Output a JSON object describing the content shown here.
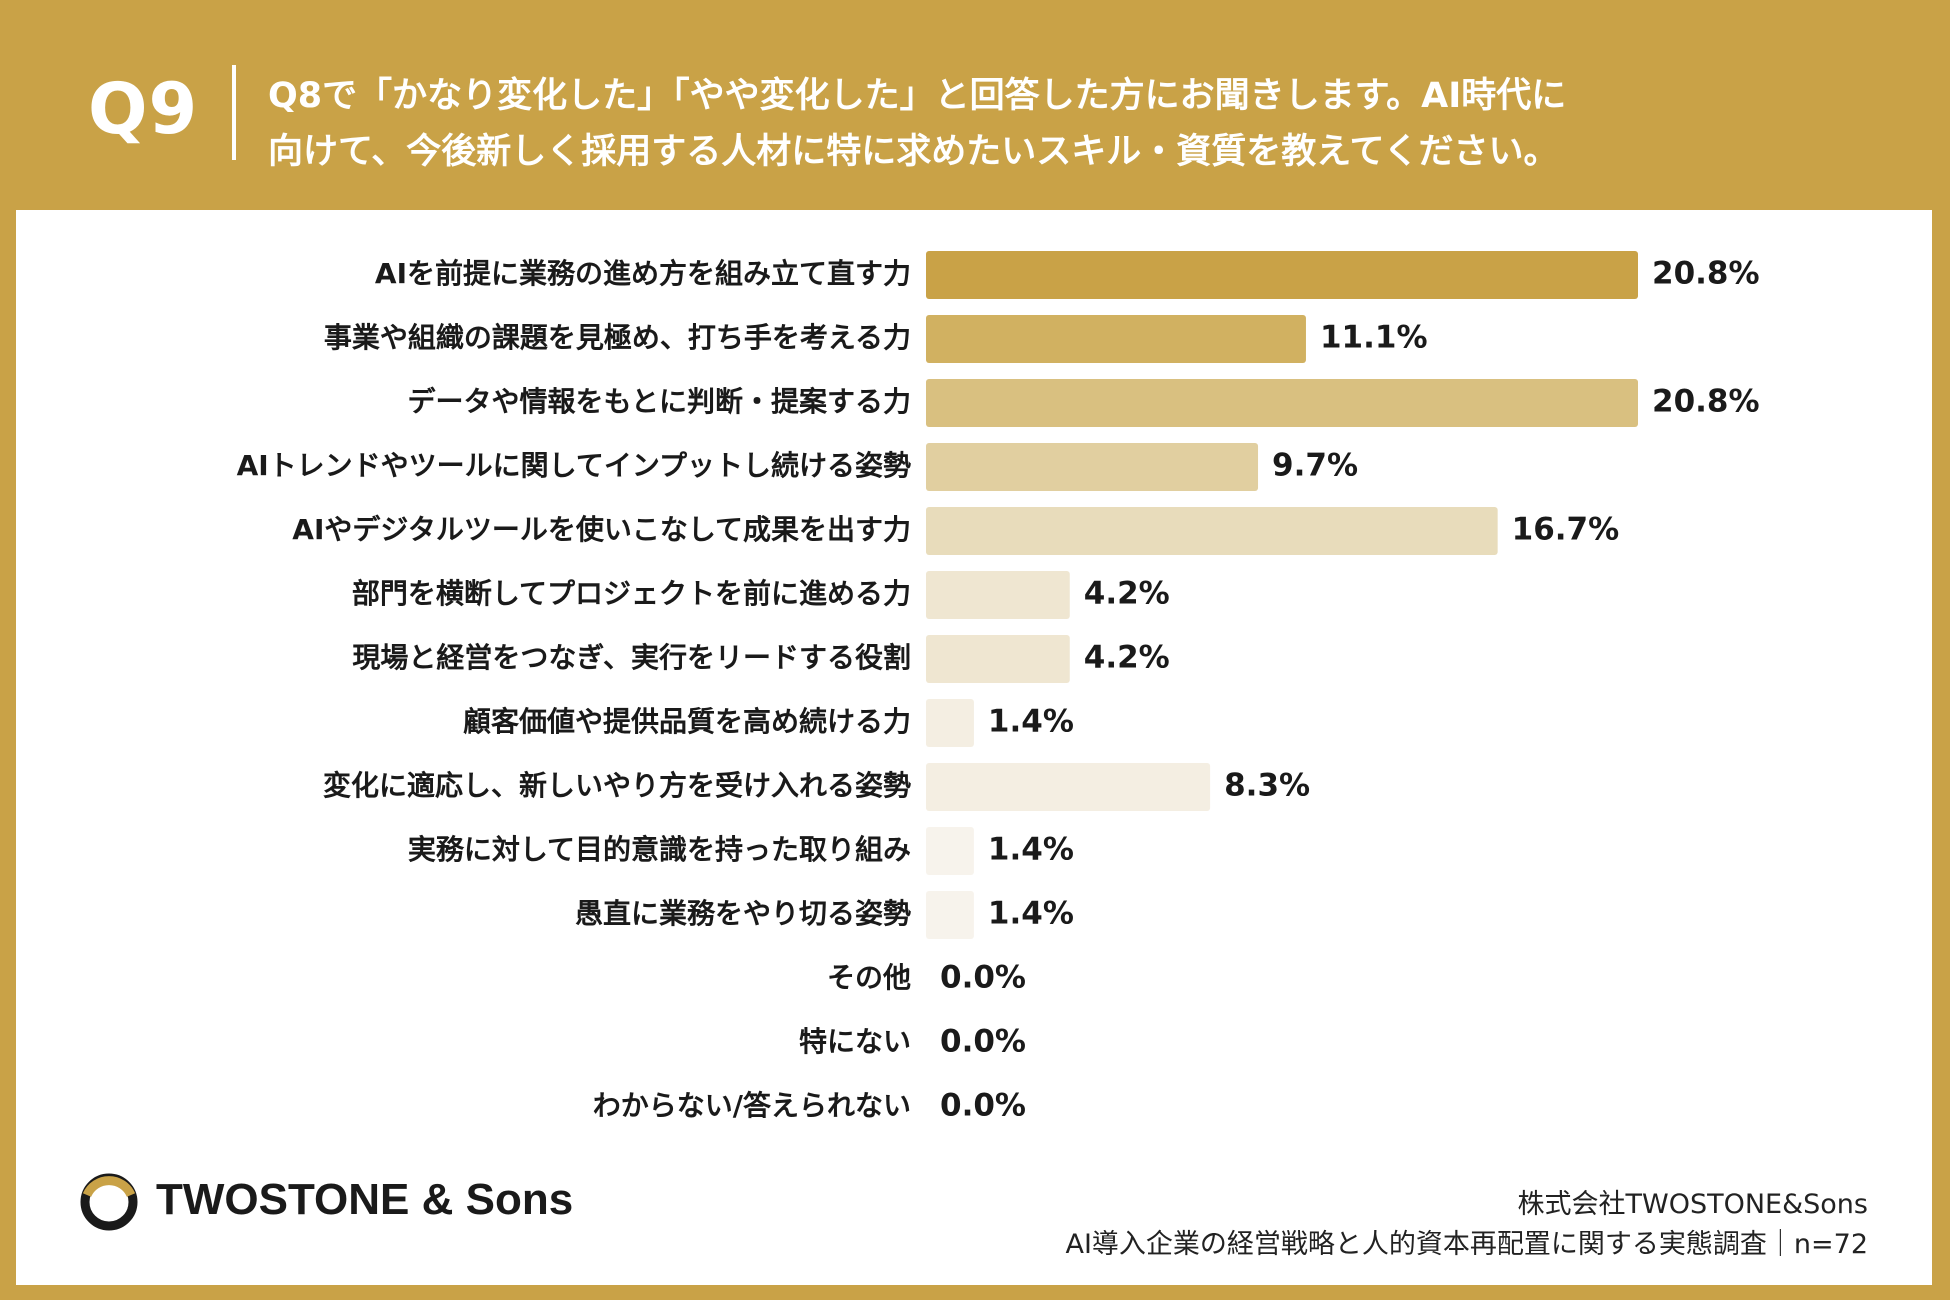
{
  "header": {
    "question_number": "Q9",
    "question_line1": "Q8で「かなり変化した」「やや変化した」と回答した方にお聞きします。AI時代に",
    "question_line2": "向けて、今後新しく採用する人材に特に求めたいスキル・資質を教えてください。"
  },
  "colors": {
    "background": "#c9a247",
    "panel": "#ffffff",
    "bar_shades": [
      "#c9a247",
      "#d1b161",
      "#d9c080",
      "#e1cfa0",
      "#e8dcbb",
      "#efe6d1",
      "#efe6d1",
      "#f4eee2",
      "#f4eee2",
      "#f7f3ec",
      "#f7f3ec",
      "#f7f3ec",
      "#f7f3ec",
      "#f7f3ec"
    ]
  },
  "chart_data": {
    "type": "bar",
    "orientation": "horizontal",
    "categories": [
      "AIを前提に業務の進め方を組み立て直す力",
      "事業や組織の課題を見極め、打ち手を考える力",
      "データや情報をもとに判断・提案する力",
      "AIトレンドやツールに関してインプットし続ける姿勢",
      "AIやデジタルツールを使いこなして成果を出す力",
      "部門を横断してプロジェクトを前に進める力",
      "現場と経営をつなぎ、実行をリードする役割",
      "顧客価値や提供品質を高め続ける力",
      "変化に適応し、新しいやり方を受け入れる姿勢",
      "実務に対して目的意識を持った取り組み",
      "愚直に業務をやり切る姿勢",
      "その他",
      "特にない",
      "わからない/答えられない"
    ],
    "values": [
      20.8,
      11.1,
      20.8,
      9.7,
      16.7,
      4.2,
      4.2,
      1.4,
      8.3,
      1.4,
      1.4,
      0.0,
      0.0,
      0.0
    ],
    "value_labels": [
      "20.8%",
      "11.1%",
      "20.8%",
      "9.7%",
      "16.7%",
      "4.2%",
      "4.2%",
      "1.4%",
      "8.3%",
      "1.4%",
      "1.4%",
      "0.0%",
      "0.0%",
      "0.0%"
    ],
    "unit": "%",
    "xlim": [
      0,
      20.8
    ]
  },
  "logo": {
    "text": "TWOSTONE & Sons"
  },
  "footer": {
    "company": "株式会社TWOSTONE&Sons",
    "survey": "AI導入企業の経営戦略と人的資本再配置に関する実態調査｜n=72"
  }
}
